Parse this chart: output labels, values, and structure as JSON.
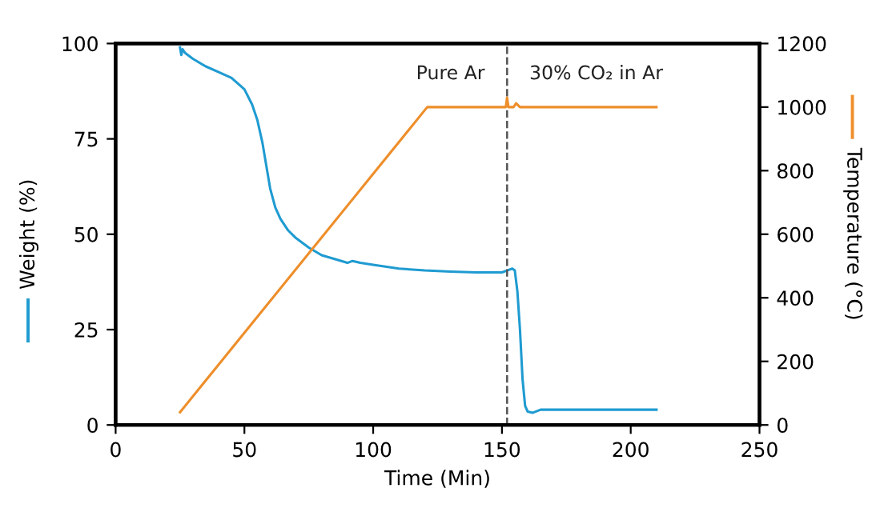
{
  "chart_data": {
    "type": "line",
    "xlabel": "Time (Min)",
    "ylabel": "Weight (%)",
    "y2label": "Temperature (°C)",
    "xlim": [
      0,
      250
    ],
    "xticks": [
      0,
      50,
      100,
      150,
      200,
      250
    ],
    "ylim": [
      0,
      100
    ],
    "yticks": [
      0,
      25,
      50,
      75,
      100
    ],
    "y2lim": [
      0,
      1200
    ],
    "y2ticks": [
      0,
      200,
      400,
      600,
      800,
      1000,
      1200
    ],
    "grid": false,
    "legend": false,
    "marker": "none",
    "line_style": "solid",
    "series": [
      {
        "axis": "y",
        "color": "#1f9bd1",
        "x": [
          25,
          25.5,
          26,
          27,
          30,
          35,
          40,
          45,
          50,
          53,
          55,
          57,
          58,
          60,
          62,
          64,
          67,
          70,
          75,
          80,
          85,
          90,
          92,
          95,
          100,
          110,
          120,
          130,
          140,
          150,
          152,
          154,
          155,
          156,
          157,
          158,
          159,
          160,
          162,
          165,
          170,
          180,
          190,
          200,
          210
        ],
        "values": [
          99,
          97,
          98.5,
          97.5,
          96,
          94,
          92.5,
          91,
          88,
          84,
          80,
          74,
          70,
          62,
          57,
          54,
          51,
          49,
          46.5,
          44.5,
          43.5,
          42.5,
          43,
          42.5,
          42,
          41,
          40.5,
          40.2,
          40,
          40,
          40.5,
          41,
          40.5,
          35,
          25,
          12,
          5,
          3.5,
          3.2,
          4,
          4,
          4,
          4,
          4,
          4
        ]
      },
      {
        "axis": "y2",
        "color": "#ee8e2a",
        "x": [
          25,
          121,
          150,
          151.5,
          152,
          152.5,
          153,
          154.5,
          155.5,
          157,
          170,
          190,
          210
        ],
        "values": [
          40,
          1000,
          1000,
          1000,
          1030,
          1000,
          1000,
          1000,
          1012,
          1000,
          1000,
          1000,
          1000
        ]
      }
    ],
    "ref_lines": [
      {
        "axis": "x",
        "value": 152,
        "label": null,
        "color": "#555555",
        "line_style": "dashed"
      }
    ],
    "annotations": [
      "Pure Ar",
      "30% CO₂ in Ar"
    ]
  }
}
